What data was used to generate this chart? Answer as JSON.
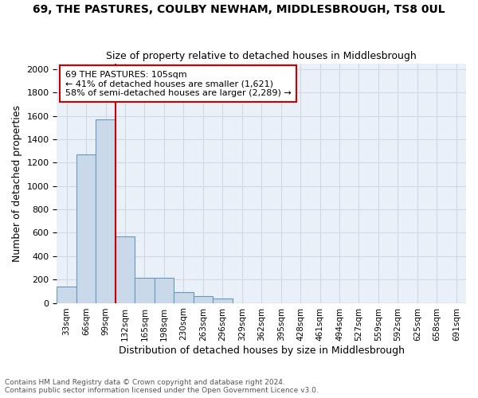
{
  "title": "69, THE PASTURES, COULBY NEWHAM, MIDDLESBROUGH, TS8 0UL",
  "subtitle": "Size of property relative to detached houses in Middlesbrough",
  "xlabel": "Distribution of detached houses by size in Middlesbrough",
  "ylabel": "Number of detached properties",
  "footnote1": "Contains HM Land Registry data © Crown copyright and database right 2024.",
  "footnote2": "Contains public sector information licensed under the Open Government Licence v3.0.",
  "bin_labels": [
    "33sqm",
    "66sqm",
    "99sqm",
    "132sqm",
    "165sqm",
    "198sqm",
    "230sqm",
    "263sqm",
    "296sqm",
    "329sqm",
    "362sqm",
    "395sqm",
    "428sqm",
    "461sqm",
    "494sqm",
    "527sqm",
    "559sqm",
    "592sqm",
    "625sqm",
    "658sqm",
    "691sqm"
  ],
  "values": [
    140,
    1270,
    1570,
    570,
    215,
    215,
    95,
    55,
    35,
    0,
    0,
    0,
    0,
    0,
    0,
    0,
    0,
    0,
    0,
    0,
    0
  ],
  "bar_color": "#c9d9ea",
  "bar_edge_color": "#6699bb",
  "grid_color": "#d0d8e4",
  "bg_color": "#eaf0f8",
  "annotation_box_facecolor": "#ffffff",
  "annotation_box_edgecolor": "#cc0000",
  "annotation_line1": "69 THE PASTURES: 105sqm",
  "annotation_line2": "← 41% of detached houses are smaller (1,621)",
  "annotation_line3": "58% of semi-detached houses are larger (2,289) →",
  "vline_color": "#cc0000",
  "vline_x": 99,
  "ylim": [
    0,
    2050
  ],
  "yticks": [
    0,
    200,
    400,
    600,
    800,
    1000,
    1200,
    1400,
    1600,
    1800,
    2000
  ],
  "bin_width": 33,
  "title_fontsize": 10,
  "subtitle_fontsize": 9,
  "xlabel_fontsize": 9,
  "ylabel_fontsize": 9,
  "tick_fontsize": 8,
  "xtick_fontsize": 7.5,
  "footnote_fontsize": 6.5
}
